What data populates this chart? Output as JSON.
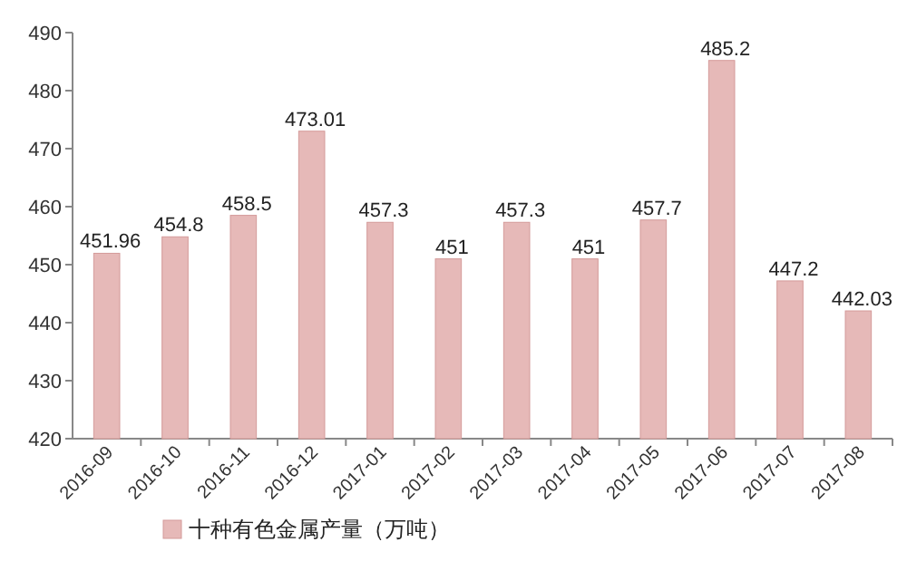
{
  "chart_data": {
    "type": "bar",
    "categories": [
      "2016-09",
      "2016-10",
      "2016-11",
      "2016-12",
      "2017-01",
      "2017-02",
      "2017-03",
      "2017-04",
      "2017-05",
      "2017-06",
      "2017-07",
      "2017-08"
    ],
    "series": [
      {
        "name": "十种有色金属产量（万吨）",
        "color": "#e6b9b8",
        "values": [
          451.96,
          454.8,
          458.5,
          473.01,
          457.3,
          451,
          457.3,
          451,
          457.7,
          485.2,
          447.2,
          442.03
        ]
      }
    ],
    "ylim": [
      420,
      490
    ],
    "yticks": [
      420,
      430,
      440,
      450,
      460,
      470,
      480,
      490
    ],
    "data_labels": true,
    "legend": "bottom"
  }
}
